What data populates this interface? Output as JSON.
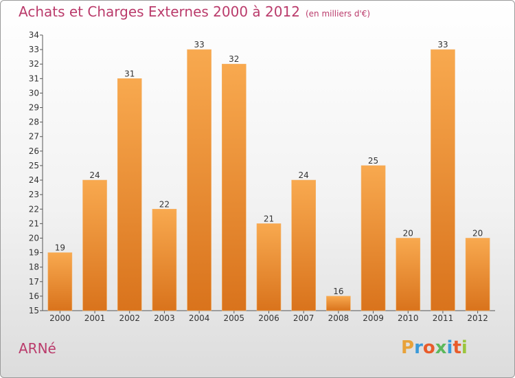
{
  "header": {
    "title": "Achats et Charges Externes 2000 à 2012",
    "subtitle": "(en milliers d'€)"
  },
  "commune": "ARNé",
  "logo": {
    "letters": [
      "P",
      "r",
      "o",
      "x",
      "i",
      "t",
      "i"
    ],
    "colors": [
      "#e8a23a",
      "#3a9ad9",
      "#e85b2a",
      "#5cb85c",
      "#3a9ad9",
      "#e85b2a",
      "#9bc53d"
    ]
  },
  "chart_data": {
    "type": "bar",
    "title": "Achats et Charges Externes 2000 à 2012",
    "subtitle": "(en milliers d'€)",
    "categories": [
      "2000",
      "2001",
      "2002",
      "2003",
      "2004",
      "2005",
      "2006",
      "2007",
      "2008",
      "2009",
      "2010",
      "2011",
      "2012"
    ],
    "values": [
      19,
      24,
      31,
      22,
      33,
      32,
      21,
      24,
      16,
      25,
      20,
      33,
      20
    ],
    "ylim": [
      15,
      34
    ],
    "yticks": [
      "15",
      "16",
      "17",
      "18",
      "19",
      "20",
      "21",
      "22",
      "23",
      "24",
      "25",
      "26",
      "27",
      "28",
      "29",
      "30",
      "31",
      "32",
      "33",
      "34"
    ],
    "grid": false,
    "colors": {
      "bar_top": "#f8a94f",
      "bar_bottom": "#d9731c",
      "axis": "#555555"
    }
  }
}
